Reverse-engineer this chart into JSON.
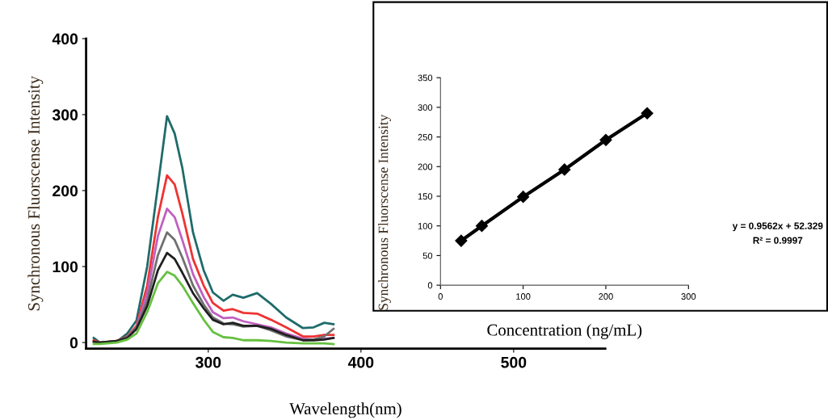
{
  "chart_data": [
    {
      "type": "line",
      "xlabel": "Wavelength(nm)",
      "ylabel": "Synchronous Fluorscense Intensity",
      "x": [
        225,
        229,
        240,
        247,
        253,
        260,
        267,
        273,
        278,
        283,
        290,
        297,
        303,
        310,
        316,
        323,
        332,
        341,
        351,
        362,
        369,
        376,
        382
      ],
      "series": [
        {
          "color": "#1f6b6b",
          "values": [
            6,
            0,
            1,
            12,
            29,
            100,
            206,
            298,
            275,
            230,
            145,
            95,
            66,
            55,
            63,
            59,
            65,
            51,
            33,
            19,
            20,
            26,
            24
          ]
        },
        {
          "color": "#ee3333",
          "values": [
            3,
            0,
            2,
            8,
            22,
            75,
            165,
            220,
            208,
            170,
            110,
            75,
            52,
            42,
            44,
            39,
            38,
            30,
            20,
            8,
            8,
            10,
            10
          ]
        },
        {
          "color": "#c060c0",
          "values": [
            null,
            null,
            2,
            7,
            20,
            65,
            140,
            176,
            165,
            135,
            90,
            60,
            40,
            32,
            33,
            28,
            24,
            20,
            12,
            5,
            4,
            5,
            6
          ]
        },
        {
          "color": "#707070",
          "values": [
            1,
            0,
            2,
            7,
            19,
            55,
            115,
            145,
            135,
            112,
            75,
            50,
            33,
            25,
            24,
            21,
            22,
            16,
            8,
            3,
            4,
            8,
            18
          ]
        },
        {
          "color": "#202020",
          "values": [
            1,
            0,
            2,
            6,
            18,
            48,
            95,
            118,
            110,
            92,
            65,
            45,
            30,
            24,
            26,
            22,
            22,
            18,
            10,
            3,
            3,
            4,
            6
          ]
        },
        {
          "color": "#66c040",
          "values": [
            -2,
            -2,
            0,
            4,
            12,
            40,
            78,
            93,
            88,
            75,
            52,
            30,
            14,
            7,
            6,
            3,
            3,
            2,
            0,
            -1,
            -1,
            -1,
            -2
          ]
        }
      ],
      "xlim": [
        220,
        560
      ],
      "ylim": [
        -8,
        400
      ],
      "xticks": [
        300,
        400,
        500
      ],
      "yticks": [
        0,
        100,
        200,
        300,
        400
      ],
      "grid": false,
      "legend": false
    },
    {
      "type": "line",
      "xlabel": "Concentration (ng/mL)",
      "ylabel": "Synchronous Fluorscense Intensity",
      "x": [
        25,
        50,
        100,
        150,
        200,
        250
      ],
      "series": [
        {
          "color": "#000000",
          "values": [
            75,
            100,
            149,
            195,
            245,
            290
          ]
        }
      ],
      "marker": "diamond",
      "xlim": [
        0,
        300
      ],
      "ylim": [
        0,
        350
      ],
      "xticks": [
        0,
        100,
        200,
        300
      ],
      "yticks": [
        0,
        50,
        100,
        150,
        200,
        250,
        300,
        350
      ],
      "annotations": [
        "y = 0.9562x + 52.329",
        "R² = 0.9997"
      ],
      "grid": false,
      "legend": false
    }
  ]
}
